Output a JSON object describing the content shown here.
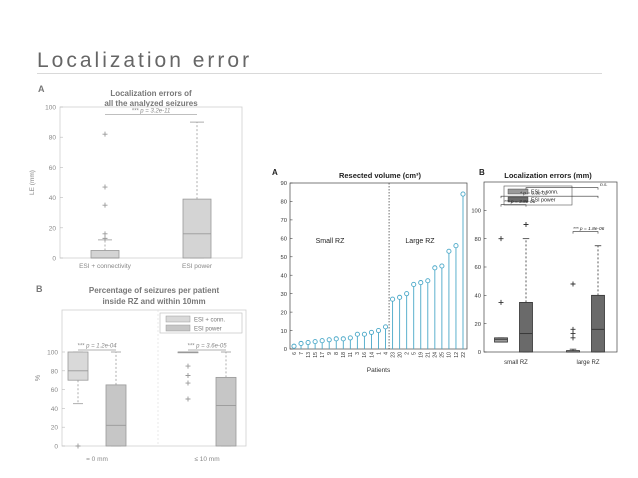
{
  "slide": {
    "title": "Localization error"
  },
  "chart_data": [
    {
      "type": "box",
      "panel_label": "A",
      "title": "Localization errors of all the analyzed seizures",
      "title_lines": [
        "Localization errors of",
        "all the analyzed seizures"
      ],
      "ylabel": "LE (mm)",
      "ylim": [
        0,
        100
      ],
      "yticks": [
        "0",
        "20",
        "40",
        "60",
        "80",
        "100"
      ],
      "categories": [
        "ESI + connectivity",
        "ESI power"
      ],
      "boxes": [
        {
          "min": 0,
          "q1": 0,
          "median": 0,
          "q3": 5,
          "max": 12,
          "outliers": [
            13,
            16,
            35,
            47,
            82
          ],
          "color": "#d4d4d4"
        },
        {
          "min": 0,
          "q1": 0,
          "median": 16,
          "q3": 39,
          "max": 90,
          "outliers": [],
          "color": "#d4d4d4"
        }
      ],
      "annotation": "*** p = 3.2e-11",
      "grid": false
    },
    {
      "type": "box",
      "panel_label": "B",
      "title": "Percentage of seizures per patient inside RZ and within 10mm",
      "title_lines": [
        "Percentage of seizures per patient",
        "inside RZ and within 10mm"
      ],
      "ylabel": "%",
      "ylim": [
        0,
        100
      ],
      "yticks": [
        "0",
        "20",
        "40",
        "60",
        "80",
        "100"
      ],
      "categories": [
        "= 0 mm",
        "≤ 10 mm"
      ],
      "legend": [
        "ESI + conn.",
        "ESI power"
      ],
      "legend_position": "top-right",
      "boxes": [
        {
          "group": 0,
          "series": 0,
          "min": 45,
          "q1": 70,
          "median": 80,
          "q3": 100,
          "max": 100,
          "outliers": [
            0
          ],
          "color": "#d9d9d9"
        },
        {
          "group": 0,
          "series": 1,
          "min": 0,
          "q1": 0,
          "median": 22,
          "q3": 65,
          "max": 100,
          "outliers": [],
          "color": "#c6c6c6"
        },
        {
          "group": 1,
          "series": 0,
          "min": 100,
          "q1": 100,
          "median": 100,
          "q3": 100,
          "max": 100,
          "outliers": [
            50,
            67,
            75,
            85
          ],
          "color": "#d9d9d9"
        },
        {
          "group": 1,
          "series": 1,
          "min": 0,
          "q1": 0,
          "median": 43,
          "q3": 73,
          "max": 100,
          "outliers": [],
          "color": "#c6c6c6"
        }
      ],
      "annotations": [
        "*** p = 1.2e-04",
        "*** p = 3.6e-05"
      ],
      "grid": false
    },
    {
      "type": "stem",
      "panel_label": "A",
      "title": "Resected volume (cm³)",
      "xlabel": "Patients",
      "ylim": [
        0,
        90
      ],
      "yticks": [
        "0",
        "10",
        "20",
        "30",
        "40",
        "50",
        "60",
        "70",
        "80",
        "90"
      ],
      "categories": [
        "6",
        "7",
        "13",
        "15",
        "17",
        "9",
        "8",
        "18",
        "11",
        "3",
        "16",
        "14",
        "1",
        "4",
        "23",
        "20",
        "2",
        "5",
        "19",
        "21",
        "24",
        "25",
        "10",
        "12",
        "22"
      ],
      "values": [
        1.5,
        3,
        3.5,
        4,
        4.5,
        5,
        5.5,
        5.5,
        6,
        8,
        8,
        9,
        10,
        12,
        27,
        28,
        30,
        35,
        36,
        37,
        44,
        45,
        53,
        56,
        84
      ],
      "divider_after_index": 13,
      "region_labels": [
        "Small RZ",
        "Large RZ"
      ],
      "color": "#4aa8c8",
      "grid": false
    },
    {
      "type": "box",
      "panel_label": "B",
      "title": "Localization errors (mm)",
      "ylim": [
        0,
        120
      ],
      "yticks": [
        "0",
        "20",
        "40",
        "60",
        "80",
        "100"
      ],
      "categories": [
        "small RZ",
        "large RZ"
      ],
      "legend": [
        "ESI + conn.",
        "ESI power"
      ],
      "legend_position": "top",
      "boxes": [
        {
          "group": 0,
          "series": 0,
          "min": 7,
          "q1": 7,
          "median": 9,
          "q3": 10,
          "max": 10,
          "outliers": [
            35,
            80
          ],
          "color": "#9a9a9a"
        },
        {
          "group": 0,
          "series": 1,
          "min": 0,
          "q1": 0,
          "median": 13,
          "q3": 35,
          "max": 80,
          "outliers": [
            90
          ],
          "color": "#6a6a6a"
        },
        {
          "group": 1,
          "series": 0,
          "min": 0,
          "q1": 0,
          "median": 0,
          "q3": 1,
          "max": 2,
          "outliers": [
            10,
            13,
            16,
            48
          ],
          "color": "#9a9a9a"
        },
        {
          "group": 1,
          "series": 1,
          "min": 0,
          "q1": 0,
          "median": 16,
          "q3": 40,
          "max": 75,
          "outliers": [],
          "color": "#6a6a6a"
        }
      ],
      "annotations": [
        "*** p = 3.8e-06",
        "* p = 3.3e-02",
        "n.s.",
        "*** p = 1.8e-06"
      ],
      "grid": false
    }
  ]
}
